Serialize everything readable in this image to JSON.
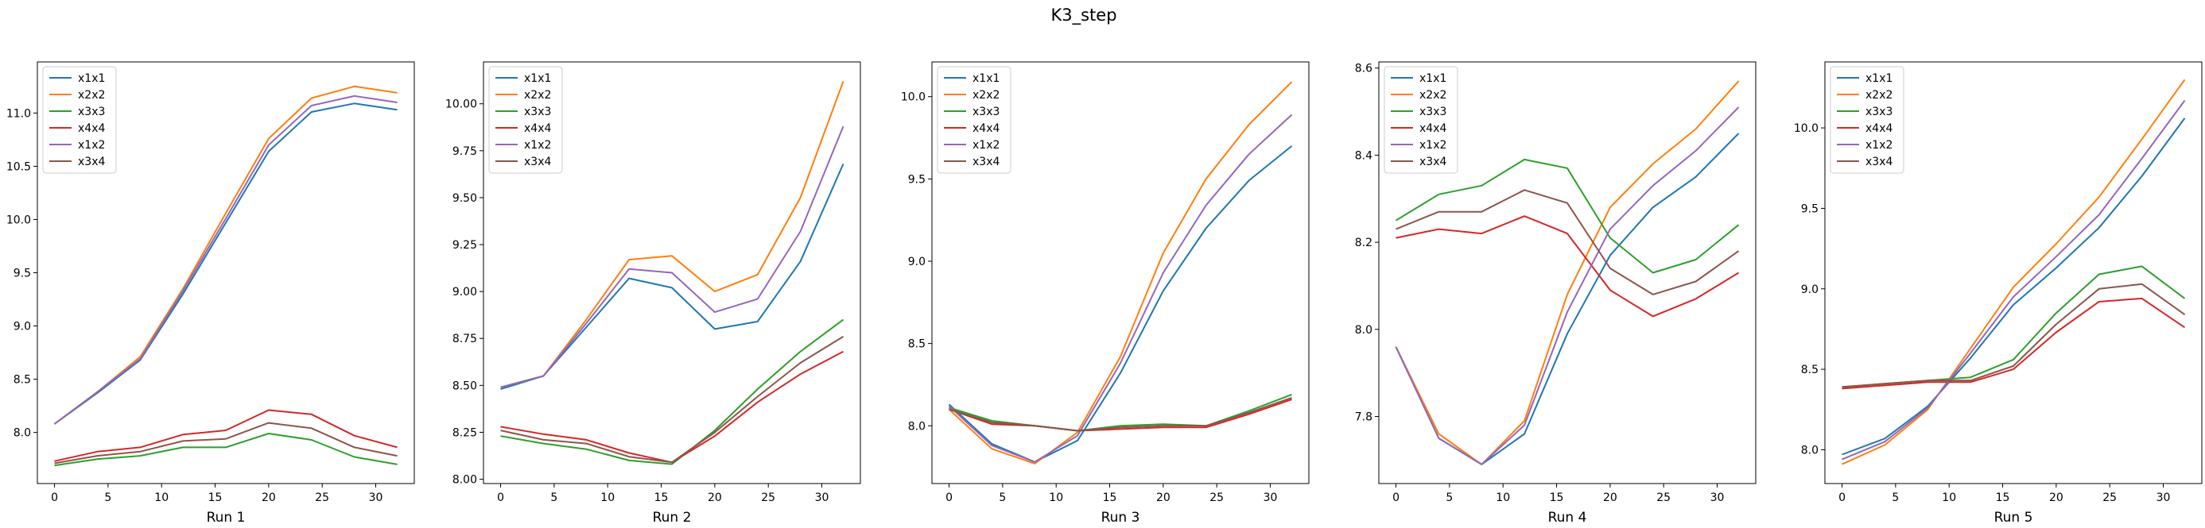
{
  "title": "K3_step",
  "series_colors": {
    "x1x1": "#1f77b4",
    "x2x2": "#ff7f0e",
    "x3x3": "#2ca02c",
    "x4x4": "#d62728",
    "x1x2": "#9467bd",
    "x3x4": "#8c564b"
  },
  "chart_data": [
    {
      "type": "line",
      "xlabel": "Run 1",
      "x": [
        0,
        4,
        8,
        12,
        16,
        20,
        24,
        28,
        32
      ],
      "xticks": [
        0,
        5,
        10,
        15,
        20,
        25,
        30
      ],
      "yticks": [
        8.0,
        8.5,
        9.0,
        9.5,
        10.0,
        10.5,
        11.0
      ],
      "ytick_labels": [
        "8.0",
        "8.5",
        "9.0",
        "9.5",
        "10.0",
        "10.5",
        "11.0"
      ],
      "xlim": [
        -1.6,
        33.6
      ],
      "ylim": [
        7.52,
        11.48
      ],
      "legend_position": "upper-left",
      "series": [
        {
          "name": "x1x1",
          "values": [
            8.08,
            8.37,
            8.68,
            9.3,
            9.97,
            10.64,
            11.01,
            11.09,
            11.03
          ]
        },
        {
          "name": "x2x2",
          "values": [
            8.08,
            8.38,
            8.71,
            9.35,
            10.06,
            10.76,
            11.14,
            11.25,
            11.19
          ]
        },
        {
          "name": "x3x3",
          "values": [
            7.69,
            7.75,
            7.78,
            7.86,
            7.86,
            7.99,
            7.93,
            7.77,
            7.7
          ]
        },
        {
          "name": "x4x4",
          "values": [
            7.73,
            7.82,
            7.86,
            7.98,
            8.02,
            8.21,
            8.17,
            7.97,
            7.86
          ]
        },
        {
          "name": "x1x2",
          "values": [
            8.08,
            8.38,
            8.69,
            9.33,
            10.01,
            10.7,
            11.07,
            11.16,
            11.1
          ]
        },
        {
          "name": "x3x4",
          "values": [
            7.71,
            7.78,
            7.82,
            7.92,
            7.94,
            8.09,
            8.04,
            7.86,
            7.78
          ]
        }
      ]
    },
    {
      "type": "line",
      "xlabel": "Run 2",
      "x": [
        0,
        4,
        8,
        12,
        16,
        20,
        24,
        28,
        32
      ],
      "xticks": [
        0,
        5,
        10,
        15,
        20,
        25,
        30
      ],
      "yticks": [
        8.0,
        8.25,
        8.5,
        8.75,
        9.0,
        9.25,
        9.5,
        9.75,
        10.0
      ],
      "ytick_labels": [
        "8.00",
        "8.25",
        "8.50",
        "8.75",
        "9.00",
        "9.25",
        "9.50",
        "9.75",
        "10.00"
      ],
      "xlim": [
        -1.6,
        33.6
      ],
      "ylim": [
        7.977,
        10.223
      ],
      "legend_position": "upper-left",
      "series": [
        {
          "name": "x1x1",
          "values": [
            8.48,
            8.55,
            8.81,
            9.07,
            9.02,
            8.8,
            8.84,
            9.16,
            9.68
          ]
        },
        {
          "name": "x2x2",
          "values": [
            8.49,
            8.55,
            8.85,
            9.17,
            9.19,
            9.0,
            9.09,
            9.5,
            10.12
          ]
        },
        {
          "name": "x3x3",
          "values": [
            8.23,
            8.19,
            8.16,
            8.1,
            8.08,
            8.26,
            8.48,
            8.68,
            8.85
          ]
        },
        {
          "name": "x4x4",
          "values": [
            8.28,
            8.24,
            8.21,
            8.14,
            8.09,
            8.23,
            8.41,
            8.56,
            8.68
          ]
        },
        {
          "name": "x1x2",
          "values": [
            8.49,
            8.55,
            8.83,
            9.12,
            9.1,
            8.89,
            8.96,
            9.32,
            9.88
          ]
        },
        {
          "name": "x3x4",
          "values": [
            8.26,
            8.21,
            8.19,
            8.12,
            8.09,
            8.25,
            8.44,
            8.62,
            8.76
          ]
        }
      ]
    },
    {
      "type": "line",
      "xlabel": "Run 3",
      "x": [
        0,
        4,
        8,
        12,
        16,
        20,
        24,
        28,
        32
      ],
      "xticks": [
        0,
        5,
        10,
        15,
        20,
        25,
        30
      ],
      "yticks": [
        8.0,
        8.5,
        9.0,
        9.5,
        10.0
      ],
      "ytick_labels": [
        "8.0",
        "8.5",
        "9.0",
        "9.5",
        "10.0"
      ],
      "xlim": [
        -1.6,
        33.6
      ],
      "ylim": [
        7.649,
        10.211
      ],
      "legend_position": "upper-left",
      "series": [
        {
          "name": "x1x1",
          "values": [
            8.13,
            7.89,
            7.78,
            7.91,
            8.32,
            8.82,
            9.2,
            9.49,
            9.7
          ]
        },
        {
          "name": "x2x2",
          "values": [
            8.1,
            7.86,
            7.77,
            7.96,
            8.42,
            9.05,
            9.5,
            9.83,
            10.09
          ]
        },
        {
          "name": "x3x3",
          "values": [
            8.11,
            8.03,
            8.0,
            7.97,
            8.0,
            8.01,
            8.0,
            8.09,
            8.19
          ]
        },
        {
          "name": "x4x4",
          "values": [
            8.1,
            8.01,
            8.0,
            7.97,
            7.98,
            7.99,
            7.99,
            8.07,
            8.16
          ]
        },
        {
          "name": "x1x2",
          "values": [
            8.12,
            7.88,
            7.78,
            7.94,
            8.38,
            8.93,
            9.34,
            9.65,
            9.89
          ]
        },
        {
          "name": "x3x4",
          "values": [
            8.1,
            8.02,
            8.0,
            7.97,
            7.99,
            8.0,
            8.0,
            8.08,
            8.17
          ]
        }
      ]
    },
    {
      "type": "line",
      "xlabel": "Run 4",
      "x": [
        0,
        4,
        8,
        12,
        16,
        20,
        24,
        28,
        32
      ],
      "xticks": [
        0,
        5,
        10,
        15,
        20,
        25,
        30
      ],
      "yticks": [
        7.8,
        8.0,
        8.2,
        8.4,
        8.6
      ],
      "ytick_labels": [
        "7.8",
        "8.0",
        "8.2",
        "8.4",
        "8.6"
      ],
      "xlim": [
        -1.6,
        33.6
      ],
      "ylim": [
        7.646,
        8.614
      ],
      "legend_position": "upper-left",
      "series": [
        {
          "name": "x1x1",
          "values": [
            7.96,
            7.75,
            7.69,
            7.76,
            7.99,
            8.17,
            8.28,
            8.35,
            8.45
          ]
        },
        {
          "name": "x2x2",
          "values": [
            7.96,
            7.76,
            7.69,
            7.79,
            8.08,
            8.28,
            8.38,
            8.46,
            8.57
          ]
        },
        {
          "name": "x3x3",
          "values": [
            8.25,
            8.31,
            8.33,
            8.39,
            8.37,
            8.21,
            8.13,
            8.16,
            8.24
          ]
        },
        {
          "name": "x4x4",
          "values": [
            8.21,
            8.23,
            8.22,
            8.26,
            8.22,
            8.09,
            8.03,
            8.07,
            8.13
          ]
        },
        {
          "name": "x1x2",
          "values": [
            7.96,
            7.75,
            7.69,
            7.78,
            8.04,
            8.23,
            8.33,
            8.41,
            8.51
          ]
        },
        {
          "name": "x3x4",
          "values": [
            8.23,
            8.27,
            8.27,
            8.32,
            8.29,
            8.14,
            8.08,
            8.11,
            8.18
          ]
        }
      ]
    },
    {
      "type": "line",
      "xlabel": "Run 5",
      "x": [
        0,
        4,
        8,
        12,
        16,
        20,
        24,
        28,
        32
      ],
      "xticks": [
        0,
        5,
        10,
        15,
        20,
        25,
        30
      ],
      "yticks": [
        8.0,
        8.5,
        9.0,
        9.5,
        10.0
      ],
      "ytick_labels": [
        "8.0",
        "8.5",
        "9.0",
        "9.5",
        "10.0"
      ],
      "xlim": [
        -1.6,
        33.6
      ],
      "ylim": [
        7.79,
        10.41
      ],
      "legend_position": "upper-left",
      "series": [
        {
          "name": "x1x1",
          "values": [
            7.97,
            8.07,
            8.27,
            8.57,
            8.9,
            9.13,
            9.38,
            9.7,
            10.06
          ]
        },
        {
          "name": "x2x2",
          "values": [
            7.91,
            8.03,
            8.25,
            8.63,
            9.01,
            9.28,
            9.57,
            9.93,
            10.3
          ]
        },
        {
          "name": "x3x3",
          "values": [
            8.39,
            8.41,
            8.43,
            8.45,
            8.56,
            8.85,
            9.09,
            9.14,
            8.94
          ]
        },
        {
          "name": "x4x4",
          "values": [
            8.38,
            8.4,
            8.42,
            8.42,
            8.5,
            8.73,
            8.92,
            8.94,
            8.76
          ]
        },
        {
          "name": "x1x2",
          "values": [
            7.94,
            8.05,
            8.26,
            8.6,
            8.95,
            9.2,
            9.46,
            9.81,
            10.17
          ]
        },
        {
          "name": "x3x4",
          "values": [
            8.39,
            8.41,
            8.43,
            8.43,
            8.52,
            8.78,
            9.0,
            9.03,
            8.84
          ]
        }
      ]
    }
  ]
}
